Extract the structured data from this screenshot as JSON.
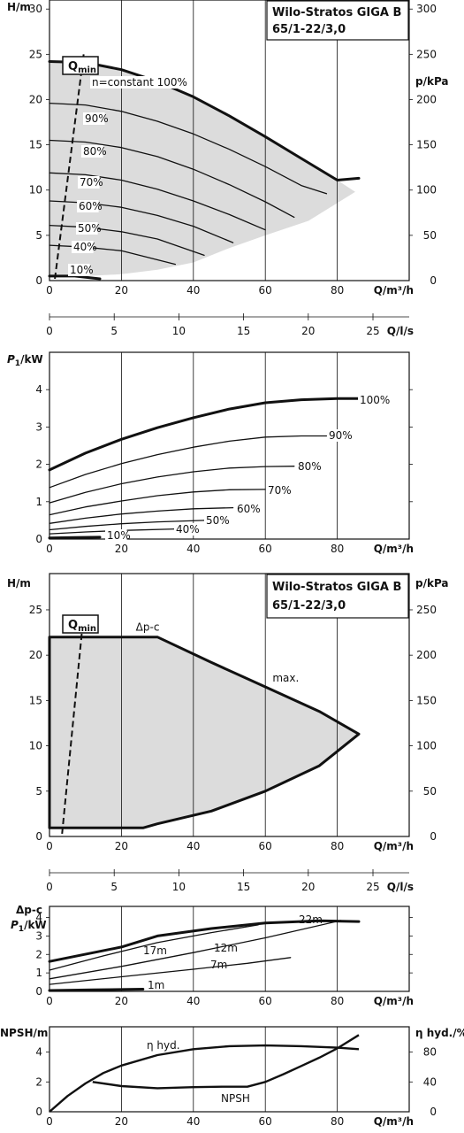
{
  "chart_data": [
    {
      "type": "line",
      "title": "Wilo-Stratos GIGA B 65/1-22/3,0",
      "title_line1": "Wilo-Stratos GIGA B",
      "title_line2": "65/1-22/3,0",
      "ylabel": "H/m",
      "ylabel_right": "p/kPa",
      "xlabel": "Q/m³/h",
      "ylim": [
        0,
        31
      ],
      "xlim": [
        0,
        100
      ],
      "y_ticks": [
        0,
        5,
        10,
        15,
        20,
        25,
        30
      ],
      "y_right_ticks": [
        0,
        50,
        100,
        150,
        200,
        250,
        300
      ],
      "x_ticks": [
        0,
        20,
        40,
        60,
        80
      ],
      "qmin_label": "Q",
      "qmin_sub": "min",
      "qmin_line": [
        [
          1.5,
          0.2
        ],
        [
          9.5,
          25
        ]
      ],
      "shaded_area": [
        [
          0,
          24.2
        ],
        [
          10,
          24.1
        ],
        [
          20,
          23.3
        ],
        [
          30,
          22.0
        ],
        [
          40,
          20.3
        ],
        [
          50,
          18.2
        ],
        [
          60,
          15.9
        ],
        [
          70,
          13.5
        ],
        [
          80,
          11.1
        ],
        [
          85,
          9.8
        ],
        [
          72,
          6.6
        ],
        [
          60,
          5.0
        ],
        [
          50,
          3.6
        ],
        [
          40,
          2.0
        ],
        [
          30,
          1.2
        ],
        [
          20,
          0.7
        ],
        [
          10,
          0.5
        ],
        [
          0,
          0.4
        ]
      ],
      "series": [
        {
          "name": "n=constant 100%",
          "bold": true,
          "x": [
            0,
            10,
            20,
            30,
            40,
            50,
            60,
            70,
            80,
            86
          ],
          "y": [
            24.2,
            24.1,
            23.3,
            22.0,
            20.3,
            18.2,
            15.9,
            13.5,
            11.1,
            11.3
          ]
        },
        {
          "name": "90%",
          "x": [
            0,
            10,
            20,
            30,
            40,
            50,
            60,
            70,
            77
          ],
          "y": [
            19.6,
            19.4,
            18.7,
            17.6,
            16.2,
            14.5,
            12.6,
            10.5,
            9.6
          ]
        },
        {
          "name": "80%",
          "x": [
            0,
            10,
            20,
            30,
            40,
            50,
            60,
            68
          ],
          "y": [
            15.5,
            15.3,
            14.7,
            13.7,
            12.3,
            10.6,
            8.7,
            7.0
          ]
        },
        {
          "name": "70%",
          "x": [
            0,
            10,
            20,
            30,
            40,
            50,
            60
          ],
          "y": [
            11.9,
            11.7,
            11.1,
            10.1,
            8.8,
            7.3,
            5.6
          ]
        },
        {
          "name": "60%",
          "x": [
            0,
            10,
            20,
            30,
            40,
            51
          ],
          "y": [
            8.8,
            8.6,
            8.1,
            7.2,
            6.0,
            4.2
          ]
        },
        {
          "name": "50%",
          "x": [
            0,
            10,
            20,
            30,
            43
          ],
          "y": [
            6.1,
            5.9,
            5.4,
            4.6,
            2.8
          ]
        },
        {
          "name": "40%",
          "x": [
            0,
            10,
            20,
            35
          ],
          "y": [
            3.9,
            3.7,
            3.3,
            1.8
          ]
        },
        {
          "name": "10%",
          "bold": true,
          "x": [
            0,
            7,
            14
          ],
          "y": [
            0.5,
            0.5,
            0.2
          ]
        }
      ]
    },
    {
      "type": "axis",
      "xlabel": "Q/l/s",
      "xlim": [
        0,
        27.8
      ],
      "x_ticks": [
        0,
        5,
        10,
        15,
        20,
        25
      ]
    },
    {
      "type": "line",
      "ylabel": "P1/kW",
      "ylabel_main": "P",
      "ylabel_sub": "1",
      "ylabel_unit": "/kW",
      "xlabel": "Q/m³/h",
      "ylim": [
        0,
        5
      ],
      "xlim": [
        0,
        100
      ],
      "y_ticks": [
        0,
        1,
        2,
        3,
        4
      ],
      "x_ticks": [
        0,
        20,
        40,
        60,
        80
      ],
      "series": [
        {
          "name": "100%",
          "bold": true,
          "x": [
            0,
            10,
            20,
            30,
            40,
            50,
            60,
            70,
            80,
            86
          ],
          "y": [
            1.85,
            2.3,
            2.67,
            2.98,
            3.25,
            3.48,
            3.65,
            3.73,
            3.76,
            3.76
          ]
        },
        {
          "name": "90%",
          "x": [
            0,
            10,
            20,
            30,
            40,
            50,
            60,
            70,
            77
          ],
          "y": [
            1.38,
            1.73,
            2.02,
            2.26,
            2.46,
            2.62,
            2.73,
            2.76,
            2.76
          ]
        },
        {
          "name": "80%",
          "x": [
            0,
            10,
            20,
            30,
            40,
            50,
            60,
            68
          ],
          "y": [
            0.97,
            1.25,
            1.48,
            1.66,
            1.8,
            1.9,
            1.94,
            1.95
          ]
        },
        {
          "name": "70%",
          "x": [
            0,
            10,
            20,
            30,
            40,
            50,
            60
          ],
          "y": [
            0.65,
            0.86,
            1.02,
            1.16,
            1.26,
            1.32,
            1.33
          ]
        },
        {
          "name": "60%",
          "x": [
            0,
            10,
            20,
            30,
            40,
            51
          ],
          "y": [
            0.42,
            0.56,
            0.67,
            0.75,
            0.81,
            0.84
          ]
        },
        {
          "name": "50%",
          "x": [
            0,
            10,
            20,
            30,
            43
          ],
          "y": [
            0.25,
            0.34,
            0.41,
            0.46,
            0.5
          ]
        },
        {
          "name": "40%",
          "x": [
            0,
            10,
            20,
            35
          ],
          "y": [
            0.14,
            0.19,
            0.23,
            0.27
          ]
        },
        {
          "name": "10%",
          "bold": true,
          "x": [
            0,
            7,
            14
          ],
          "y": [
            0.03,
            0.04,
            0.05
          ]
        }
      ]
    },
    {
      "type": "line",
      "title_line1": "Wilo-Stratos GIGA B",
      "title_line2": "65/1-22/3,0",
      "ylabel": "H/m",
      "ylabel_right": "p/kPa",
      "xlabel": "Q/m³/h",
      "ylim": [
        0,
        29
      ],
      "xlim": [
        0,
        100
      ],
      "y_ticks": [
        0,
        5,
        10,
        15,
        20,
        25
      ],
      "y_right_ticks": [
        0,
        50,
        100,
        150,
        200,
        250
      ],
      "x_ticks": [
        0,
        20,
        40,
        60,
        80
      ],
      "qmin_label": "Q",
      "qmin_sub": "min",
      "qmin_line": [
        [
          3.5,
          0.3
        ],
        [
          9,
          22.5
        ]
      ],
      "annotations": [
        {
          "text": "Δp-c",
          "x": 24,
          "y": 22.7
        },
        {
          "text": "max.",
          "x": 62,
          "y": 17.1
        }
      ],
      "series": [
        {
          "name": "Δp-c / max.",
          "bold": true,
          "closed": true,
          "x": [
            0,
            30,
            45,
            60,
            75,
            86,
            75,
            60,
            45,
            30,
            26,
            0
          ],
          "y": [
            22.0,
            22.0,
            19.2,
            16.5,
            13.8,
            11.3,
            7.8,
            5.0,
            2.8,
            1.4,
            0.95,
            0.95
          ]
        }
      ]
    },
    {
      "type": "axis",
      "xlabel": "Q/l/s",
      "xlim": [
        0,
        27.8
      ],
      "x_ticks": [
        0,
        5,
        10,
        15,
        20,
        25
      ]
    },
    {
      "type": "line",
      "ylabel_top": "Δp-c",
      "ylabel": "P1/kW",
      "ylabel_main": "P",
      "ylabel_sub": "1",
      "ylabel_unit": "/kW",
      "xlabel": "Q/m³/h",
      "ylim": [
        0,
        4.6
      ],
      "xlim": [
        0,
        100
      ],
      "y_ticks": [
        0,
        1,
        2,
        3,
        4
      ],
      "x_ticks": [
        0,
        20,
        40,
        60,
        80
      ],
      "series": [
        {
          "name": "22m",
          "bold": true,
          "x": [
            0,
            20,
            30,
            45,
            60,
            75,
            86
          ],
          "y": [
            1.62,
            2.4,
            3.0,
            3.4,
            3.7,
            3.82,
            3.78
          ]
        },
        {
          "name": "17m",
          "x": [
            0,
            15,
            30,
            45,
            58
          ],
          "y": [
            1.15,
            1.92,
            2.64,
            3.18,
            3.6
          ]
        },
        {
          "name": "12m",
          "x": [
            0,
            20,
            40,
            60,
            81
          ],
          "y": [
            0.68,
            1.35,
            2.1,
            2.9,
            3.84
          ]
        },
        {
          "name": "7m",
          "x": [
            0,
            20,
            40,
            55,
            67
          ],
          "y": [
            0.38,
            0.79,
            1.2,
            1.52,
            1.83
          ]
        },
        {
          "name": "1m",
          "bold": true,
          "x": [
            0,
            12,
            26
          ],
          "y": [
            0.05,
            0.08,
            0.12
          ]
        }
      ]
    },
    {
      "type": "line",
      "ylabel": "NPSH/m",
      "ylabel_right": "η hyd./%",
      "xlabel": "Q/m³/h",
      "ylim": [
        0,
        5.7
      ],
      "xlim": [
        0,
        100
      ],
      "y_ticks": [
        0,
        2,
        4
      ],
      "y_right_ticks": [
        0,
        40,
        80
      ],
      "x_ticks": [
        0,
        20,
        40,
        60,
        80
      ],
      "series": [
        {
          "name": "η hyd.",
          "axis": "right",
          "x": [
            0,
            5,
            10,
            15,
            20,
            30,
            40,
            50,
            60,
            70,
            80,
            86
          ],
          "y": [
            0,
            21,
            38,
            52,
            62,
            76,
            84,
            88,
            89,
            88,
            86,
            84
          ]
        },
        {
          "name": "NPSH",
          "axis": "left",
          "x": [
            12,
            20,
            30,
            40,
            48,
            55,
            60,
            65,
            70,
            75,
            80,
            86
          ],
          "y": [
            2.0,
            1.72,
            1.58,
            1.65,
            1.68,
            1.68,
            2.0,
            2.52,
            3.07,
            3.63,
            4.25,
            5.15
          ]
        }
      ]
    }
  ]
}
